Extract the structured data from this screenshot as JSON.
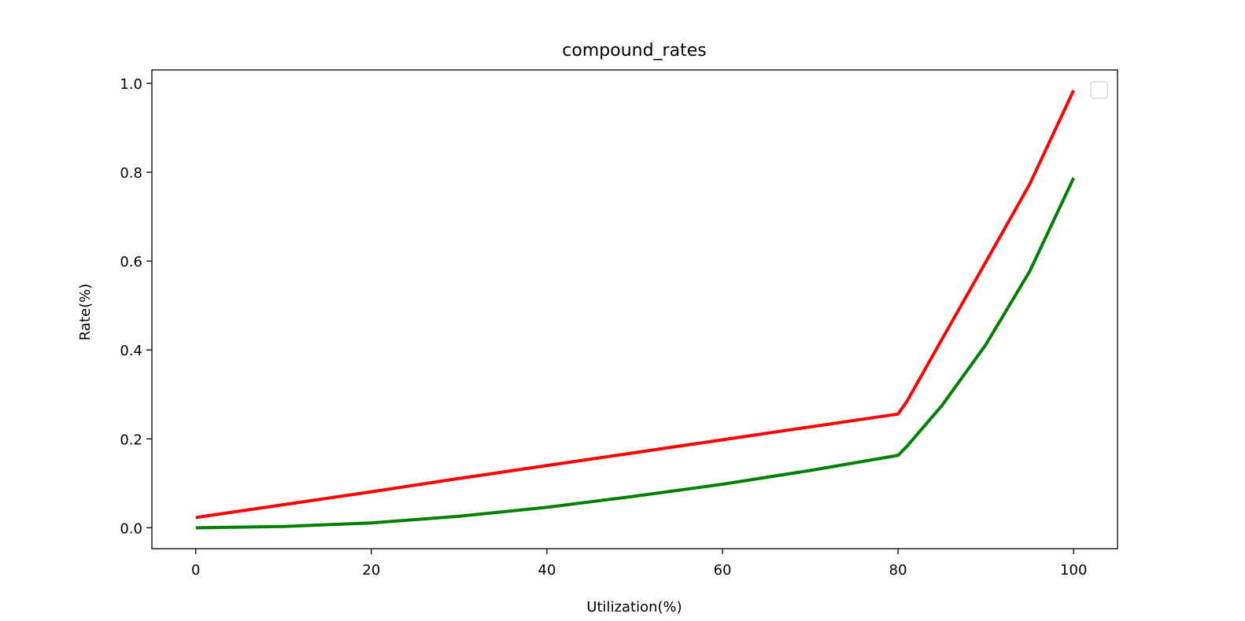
{
  "chart_data": {
    "type": "line",
    "title": "compound_rates",
    "xlabel": "Utilization(%)",
    "ylabel": "Rate(%)",
    "xlim": [
      -5,
      105
    ],
    "ylim": [
      -0.047,
      1.03
    ],
    "xticks": [
      0,
      20,
      40,
      60,
      80,
      100
    ],
    "yticks": [
      0.0,
      0.2,
      0.4,
      0.6,
      0.8,
      1.0
    ],
    "xtick_labels": [
      "0",
      "20",
      "40",
      "60",
      "80",
      "100"
    ],
    "ytick_labels": [
      "0.0",
      "0.2",
      "0.4",
      "0.6",
      "0.8",
      "1.0"
    ],
    "grid": false,
    "legend": {
      "placement": "top-right",
      "entries": []
    },
    "series": [
      {
        "color": "#ff0000",
        "x": [
          0,
          10,
          20,
          30,
          40,
          50,
          60,
          70,
          80,
          81,
          85,
          90,
          95,
          100
        ],
        "y": [
          0.023,
          0.052,
          0.081,
          0.111,
          0.14,
          0.169,
          0.198,
          0.227,
          0.256,
          0.284,
          0.424,
          0.598,
          0.773,
          0.984
        ]
      },
      {
        "color": "#008000",
        "x": [
          0,
          10,
          20,
          30,
          40,
          50,
          60,
          70,
          80,
          81,
          85,
          90,
          95,
          100
        ],
        "y": [
          0.0,
          0.003,
          0.011,
          0.026,
          0.046,
          0.071,
          0.098,
          0.129,
          0.163,
          0.183,
          0.275,
          0.412,
          0.577,
          0.787
        ]
      }
    ]
  }
}
